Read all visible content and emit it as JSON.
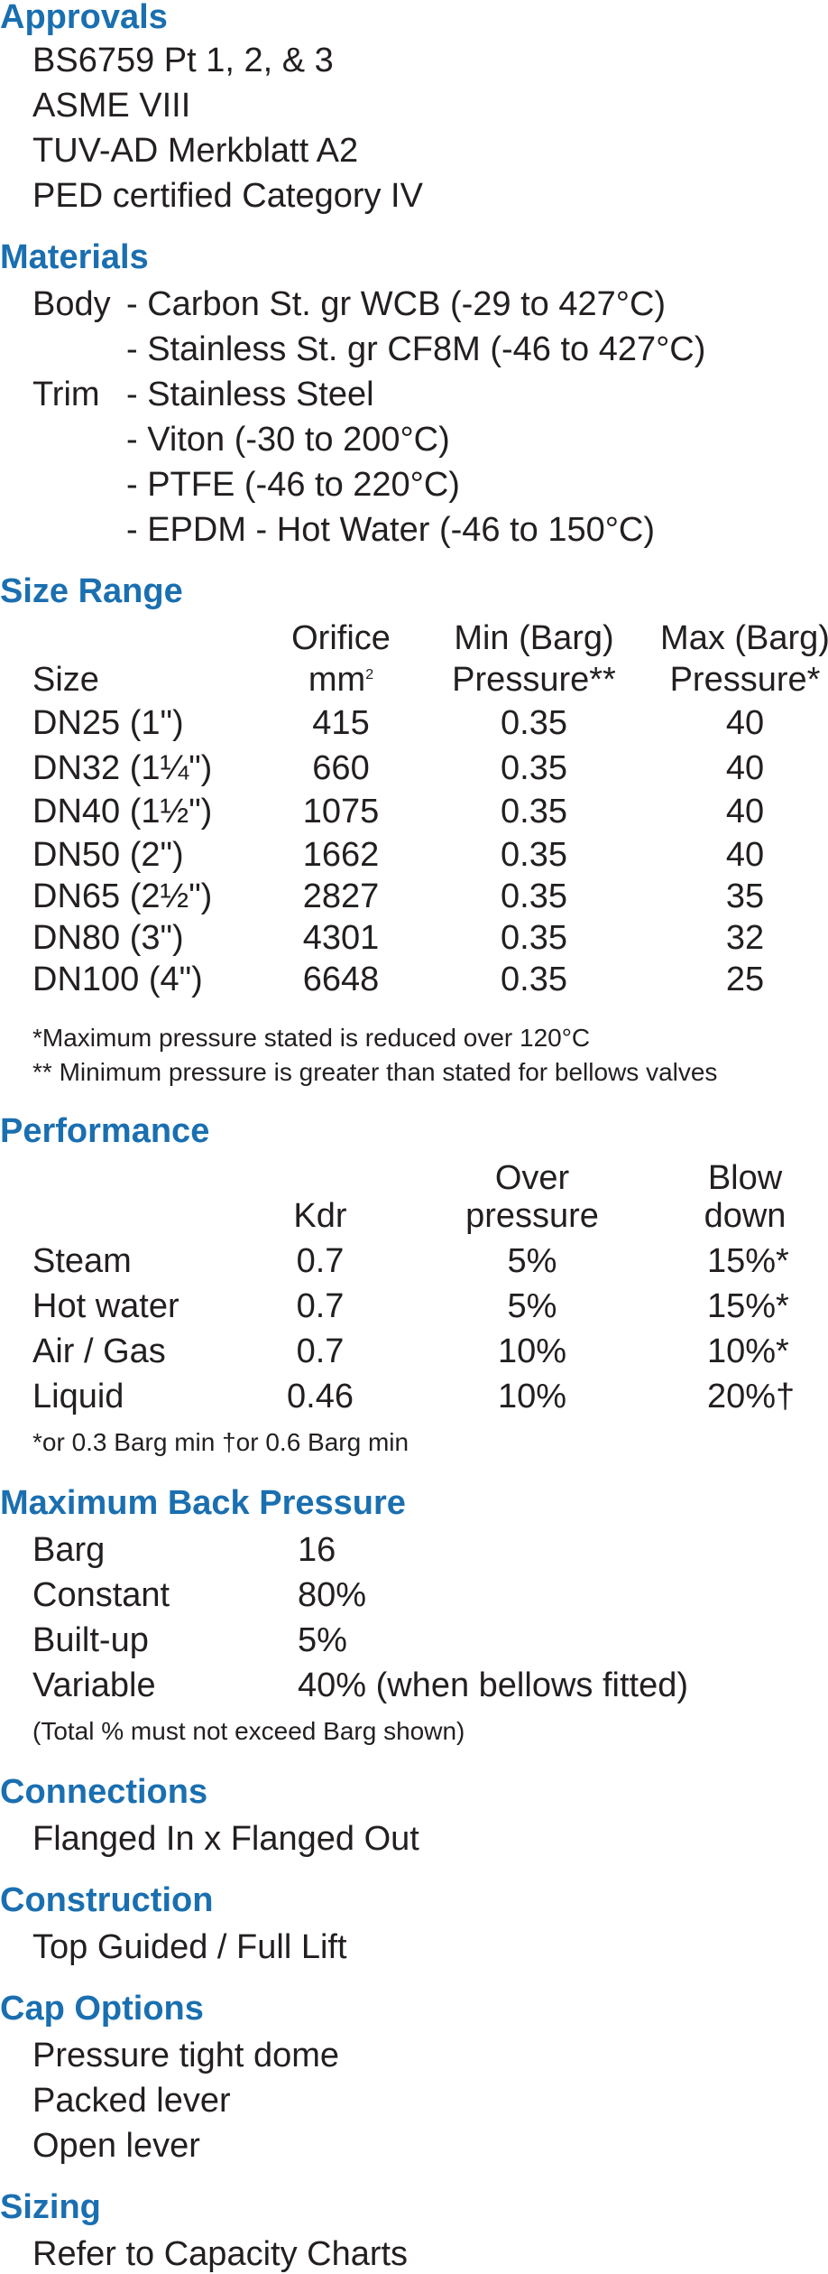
{
  "approvals": {
    "heading": "Approvals",
    "items": [
      "BS6759 Pt 1, 2, & 3",
      "ASME VIII",
      "TUV-AD Merkblatt A2",
      "PED certified Category IV"
    ]
  },
  "materials": {
    "heading": "Materials",
    "body_label": "Body",
    "body_items": [
      "- Carbon St. gr WCB (-29 to 427°C)",
      "- Stainless St. gr CF8M (-46 to 427°C)"
    ],
    "trim_label": "Trim",
    "trim_items": [
      "- Stainless Steel",
      "- Viton (-30 to 200°C)",
      "- PTFE (-46 to 220°C)",
      "- EPDM - Hot Water (-46 to 150°C)"
    ]
  },
  "size_range": {
    "heading": "Size Range",
    "col_size": "Size",
    "col_orifice_1": "Orifice",
    "col_orifice_2": "mm",
    "col_orifice_sup": "2",
    "col_min_1": "Min (Barg)",
    "col_min_2": "Pressure**",
    "col_max_1": "Max (Barg)",
    "col_max_2": "Pressure*",
    "rows": [
      {
        "size": "DN25 (1\")",
        "orifice": "415",
        "min": "0.35",
        "max": "40"
      },
      {
        "size": "DN32 (1¼\")",
        "orifice": "660",
        "min": "0.35",
        "max": "40"
      },
      {
        "size": "DN40 (1½\")",
        "orifice": "1075",
        "min": "0.35",
        "max": "40"
      },
      {
        "size": "DN50 (2\")",
        "orifice": "1662",
        "min": "0.35",
        "max": "40"
      },
      {
        "size": "DN65 (2½\")",
        "orifice": "2827",
        "min": "0.35",
        "max": "35"
      },
      {
        "size": "DN80 (3\")",
        "orifice": "4301",
        "min": "0.35",
        "max": "32"
      },
      {
        "size": "DN100 (4\")",
        "orifice": "6648",
        "min": "0.35",
        "max": "25"
      }
    ],
    "note_1": "*Maximum pressure stated is reduced over 120°C",
    "note_2": "** Minimum pressure is greater than stated for bellows valves"
  },
  "performance": {
    "heading": "Performance",
    "col_kdr": "Kdr",
    "col_over_1": "Over",
    "col_over_2": "pressure",
    "col_blow_1": "Blow",
    "col_blow_2": "down",
    "rows": [
      {
        "medium": "Steam",
        "kdr": "0.7",
        "over": "5%",
        "blow": "15%*"
      },
      {
        "medium": "Hot water",
        "kdr": "0.7",
        "over": "5%",
        "blow": "15%*"
      },
      {
        "medium": "Air / Gas",
        "kdr": "0.7",
        "over": "10%",
        "blow": "10%*"
      },
      {
        "medium": "Liquid",
        "kdr": "0.46",
        "over": "10%",
        "blow": "20%†"
      }
    ],
    "note": "*or 0.3 Barg min  †or 0.6 Barg min"
  },
  "back_pressure": {
    "heading": "Maximum Back Pressure",
    "rows": [
      {
        "label": "Barg",
        "value": "16"
      },
      {
        "label": "Constant",
        "value": "80%"
      },
      {
        "label": "Built-up",
        "value": "5%"
      },
      {
        "label": "Variable",
        "value": "40% (when bellows fitted)"
      }
    ],
    "note": "(Total % must not exceed Barg shown)"
  },
  "connections": {
    "heading": "Connections",
    "text": "Flanged In x Flanged Out"
  },
  "construction": {
    "heading": "Construction",
    "text": "Top Guided / Full Lift"
  },
  "cap_options": {
    "heading": "Cap Options",
    "items": [
      "Pressure tight dome",
      "Packed lever",
      "Open lever"
    ]
  },
  "sizing": {
    "heading": "Sizing",
    "text": "Refer to Capacity Charts"
  }
}
